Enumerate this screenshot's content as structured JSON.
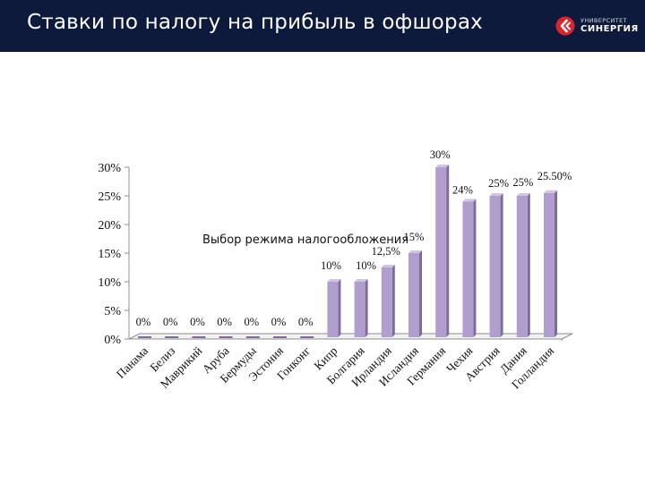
{
  "header": {
    "title": "Ставки по налогу на прибыль в офшорах",
    "logo": {
      "top_line": "УНИВЕРСИТЕТ",
      "main_line": "СИНЕРГИЯ",
      "icon": "synergy-logo-icon"
    }
  },
  "colors": {
    "header_bg": "#0d1a3c",
    "bar_front": "#b09ecf",
    "bar_side": "#7d6c9b",
    "bar_top": "#cfc4e3",
    "axis": "#8e8e8e",
    "logo_red": "#d8242c"
  },
  "annotation": "Выбор режима налогообложения",
  "chart_data": {
    "type": "bar",
    "categories": [
      "Панама",
      "Белиз",
      "Маврикий",
      "Аруба",
      "Бермуды",
      "Эстония",
      "Гонконг",
      "Кипр",
      "Болгария",
      "Ирландия",
      "Исландия",
      "Германия",
      "Чехия",
      "Австрия",
      "Дания",
      "Голландия"
    ],
    "values": [
      0,
      0,
      0,
      0,
      0,
      0,
      0,
      10,
      10,
      12.5,
      15,
      30,
      24,
      25,
      25,
      25.5
    ],
    "data_labels": [
      "0%",
      "0%",
      "0%",
      "0%",
      "0%",
      "0%",
      "0%",
      "10%",
      "10%",
      "12,5%",
      "15%",
      "30%",
      "24%",
      "25%",
      "25%",
      "25.50%"
    ],
    "y_ticks": [
      "0%",
      "5%",
      "10%",
      "15%",
      "20%",
      "25%",
      "30%"
    ],
    "ylim": [
      0,
      30
    ],
    "title": "",
    "xlabel": "",
    "ylabel": "",
    "grid": false,
    "legend": "none"
  }
}
